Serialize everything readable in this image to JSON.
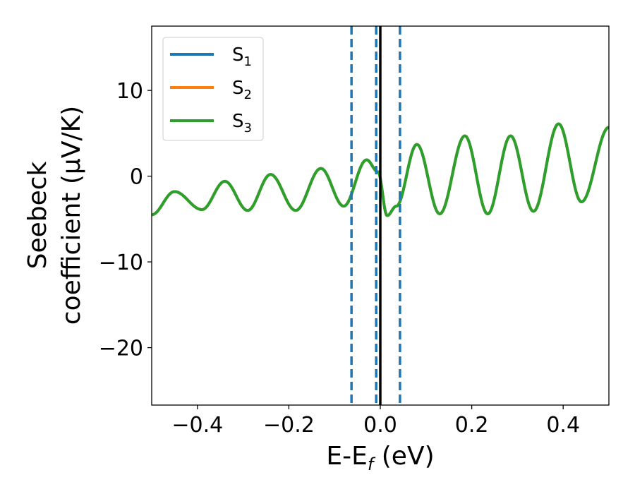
{
  "chart_data": {
    "type": "line",
    "xlabel": "E-E_f (eV)",
    "xlabel_main": "E-E",
    "xlabel_sub": "f",
    "xlabel_suffix": " (eV)",
    "ylabel_line1": "Seebeck",
    "ylabel_line2": "coefficient  (μV/K)",
    "xlim": [
      -0.5,
      0.5
    ],
    "ylim": [
      -26.7,
      17.5
    ],
    "x_ticks": [
      -0.4,
      -0.2,
      0.0,
      0.2,
      0.4
    ],
    "x_tick_labels": [
      "−0.4",
      "−0.2",
      "0.0",
      "0.2",
      "0.4"
    ],
    "y_ticks": [
      10,
      0,
      -10,
      -20
    ],
    "y_tick_labels": [
      "10",
      "0",
      "−10",
      "−20"
    ],
    "grid": false,
    "legend_position": "upper-left",
    "legend": [
      {
        "main": "S",
        "sub": "1"
      },
      {
        "main": "S",
        "sub": "2"
      },
      {
        "main": "S",
        "sub": "3"
      }
    ],
    "series": [
      {
        "name": "S1",
        "color": "#1f77b4"
      },
      {
        "name": "S2",
        "color": "#ff7f0e"
      },
      {
        "name": "S3",
        "color": "#2ca02c"
      }
    ],
    "x": [
      -0.5,
      -0.45,
      -0.39,
      -0.34,
      -0.29,
      -0.24,
      -0.185,
      -0.13,
      -0.08,
      -0.03,
      -0.005,
      0.015,
      0.035,
      0.08,
      0.13,
      0.185,
      0.235,
      0.285,
      0.335,
      0.39,
      0.44,
      0.5
    ],
    "values": [
      -4.5,
      -1.8,
      -3.9,
      -0.6,
      -4.0,
      0.2,
      -4.0,
      0.9,
      -3.5,
      1.9,
      0.5,
      -4.6,
      -3.5,
      3.7,
      -4.4,
      4.7,
      -4.4,
      4.7,
      -4.1,
      6.1,
      -3.0,
      5.7
    ],
    "vlines": [
      {
        "x": -0.063,
        "style": "dashed",
        "color": "#1f77b4"
      },
      {
        "x": -0.009,
        "style": "dashed",
        "color": "#1f77b4"
      },
      {
        "x": 0.0,
        "style": "solid",
        "color": "#000000"
      },
      {
        "x": 0.043,
        "style": "dashed",
        "color": "#1f77b4"
      }
    ]
  }
}
